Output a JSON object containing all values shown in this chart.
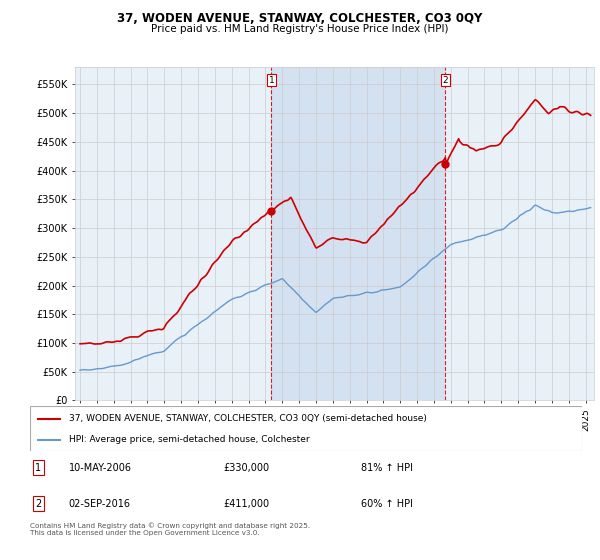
{
  "title": "37, WODEN AVENUE, STANWAY, COLCHESTER, CO3 0QY",
  "subtitle": "Price paid vs. HM Land Registry's House Price Index (HPI)",
  "ylabel_ticks": [
    "£0",
    "£50K",
    "£100K",
    "£150K",
    "£200K",
    "£250K",
    "£300K",
    "£350K",
    "£400K",
    "£450K",
    "£500K",
    "£550K"
  ],
  "ylim": [
    0,
    580000
  ],
  "ytick_vals": [
    0,
    50000,
    100000,
    150000,
    200000,
    250000,
    300000,
    350000,
    400000,
    450000,
    500000,
    550000
  ],
  "xlim_start": 1994.7,
  "xlim_end": 2025.5,
  "marker1_x": 2006.36,
  "marker1_y": 330000,
  "marker2_x": 2016.67,
  "marker2_y": 411000,
  "legend_line1": "37, WODEN AVENUE, STANWAY, COLCHESTER, CO3 0QY (semi-detached house)",
  "legend_line2": "HPI: Average price, semi-detached house, Colchester",
  "annotation1_date": "10-MAY-2006",
  "annotation1_price": "£330,000",
  "annotation1_hpi": "81% ↑ HPI",
  "annotation2_date": "02-SEP-2016",
  "annotation2_price": "£411,000",
  "annotation2_hpi": "60% ↑ HPI",
  "footer": "Contains HM Land Registry data © Crown copyright and database right 2025.\nThis data is licensed under the Open Government Licence v3.0.",
  "hpi_color": "#6699cc",
  "price_color": "#cc0000",
  "background_color": "#ffffff",
  "plot_bg_color": "#e8f0f8",
  "grid_color": "#cccccc",
  "shade_color": "#c8d8ec"
}
